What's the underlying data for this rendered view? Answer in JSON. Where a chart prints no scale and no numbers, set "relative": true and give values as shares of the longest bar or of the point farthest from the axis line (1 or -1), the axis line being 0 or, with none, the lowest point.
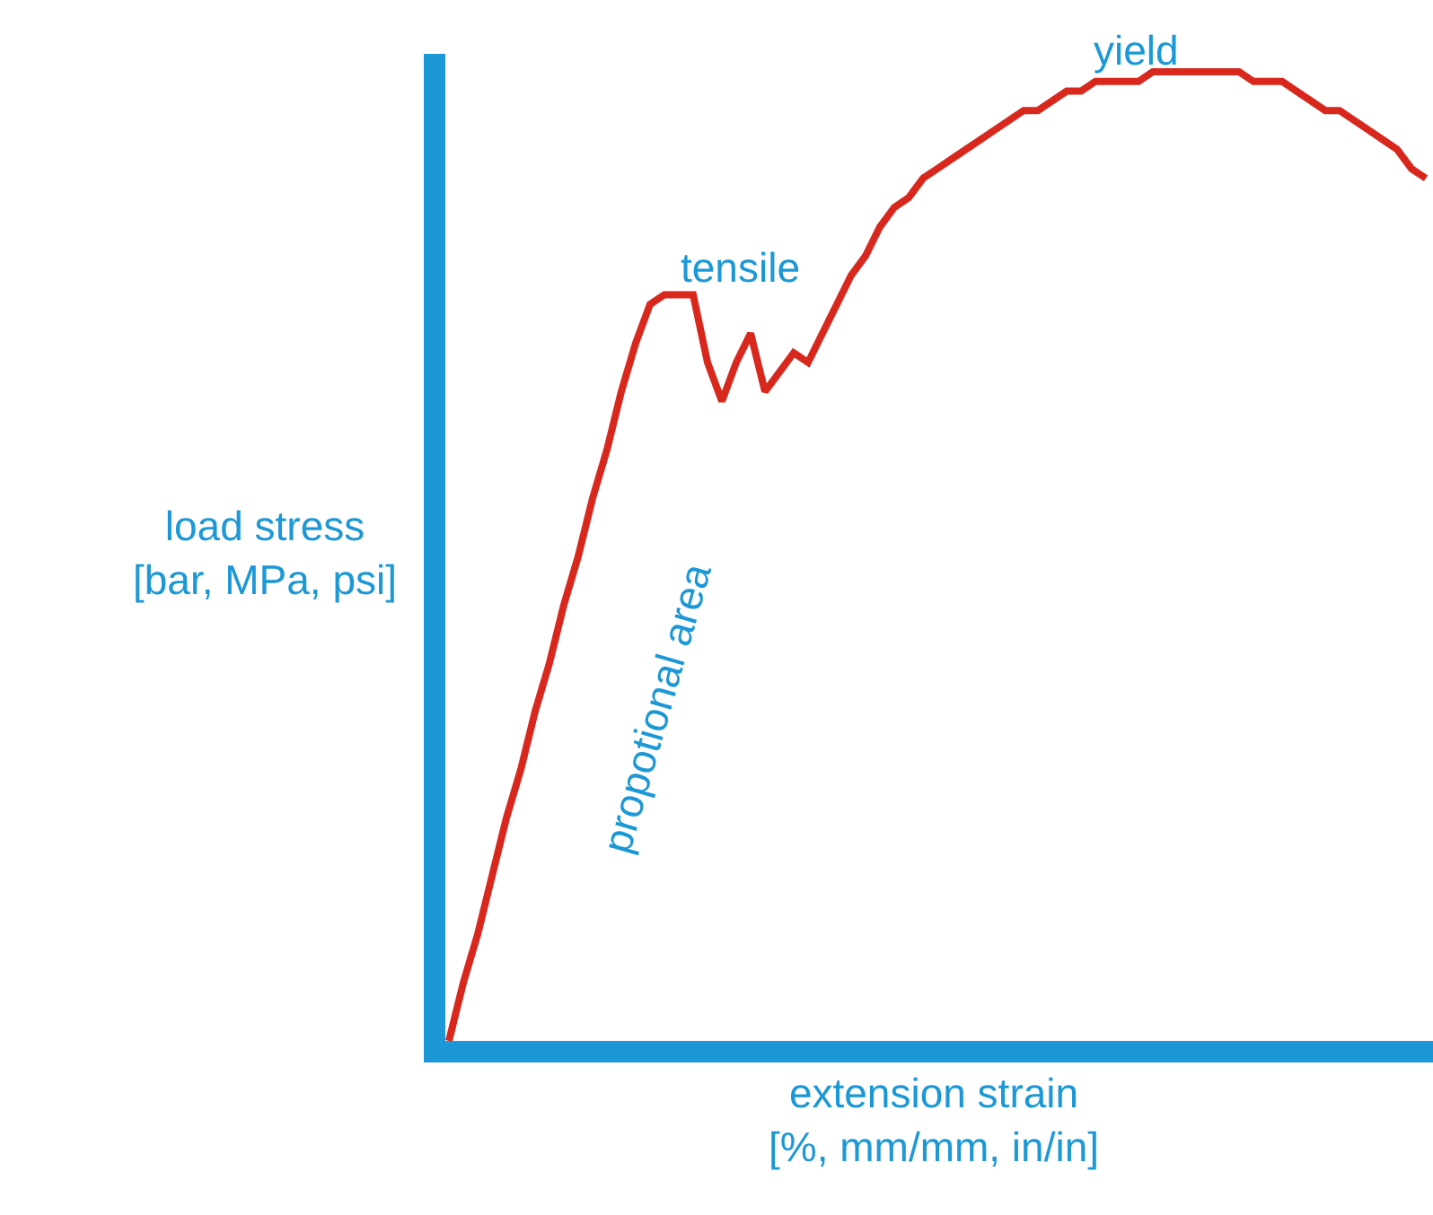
{
  "chart_data": {
    "type": "line",
    "relative": true,
    "xlabel": "extension strain\n[%, mm/mm, in/in]",
    "ylabel": "load stress\n[bar, MPa, psi]",
    "annotations": [
      "tensile",
      "yield",
      "propotional area"
    ],
    "categories": [
      null,
      null,
      null,
      null,
      null,
      null,
      null,
      null,
      null,
      null,
      null,
      null,
      null,
      null,
      null,
      null,
      null,
      null,
      null,
      null,
      null,
      null,
      null,
      null,
      null,
      null,
      null,
      null,
      null,
      null,
      null,
      null,
      null,
      null,
      null,
      null,
      null,
      null,
      null,
      null,
      null,
      null,
      null,
      null,
      null,
      null,
      null,
      null,
      null,
      null,
      null,
      null,
      null,
      null,
      null,
      null,
      null,
      null,
      null,
      null,
      null,
      null,
      null,
      null,
      null,
      null,
      null,
      null,
      null
    ],
    "series": [
      {
        "color": "#d8281e",
        "values": [
          0,
          0.06,
          0.11,
          0.17,
          0.23,
          0.28,
          0.34,
          0.39,
          0.45,
          0.5,
          0.56,
          0.61,
          0.67,
          0.72,
          0.76,
          0.77,
          0.77,
          0.77,
          0.7,
          0.66,
          0.7,
          0.73,
          0.67,
          0.69,
          0.71,
          0.7,
          0.73,
          0.76,
          0.79,
          0.81,
          0.84,
          0.86,
          0.87,
          0.89,
          0.9,
          0.91,
          0.92,
          0.93,
          0.94,
          0.95,
          0.96,
          0.96,
          0.97,
          0.98,
          0.98,
          0.99,
          0.99,
          0.99,
          0.99,
          1,
          1,
          1,
          1,
          1,
          1,
          1,
          0.99,
          0.99,
          0.99,
          0.98,
          0.97,
          0.96,
          0.96,
          0.95,
          0.94,
          0.93,
          0.92,
          0.9,
          0.89
        ]
      }
    ],
    "marker": "none",
    "line_style": "solid"
  }
}
